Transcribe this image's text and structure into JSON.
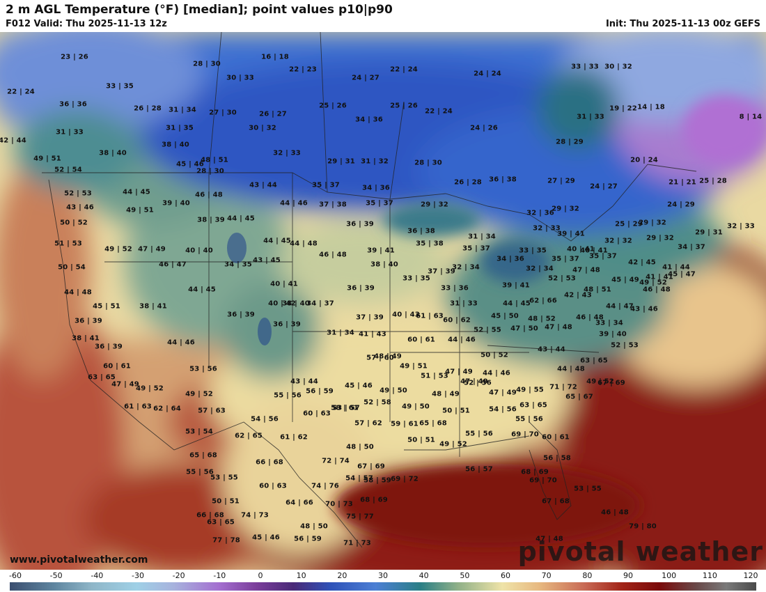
{
  "header": {
    "title": "2 m AGL Temperature (°F) [median]; point values p10|p90",
    "valid": "F012 Valid: Thu 2025-11-13 12z",
    "init": "Init: Thu 2025-11-13 00z GEFS"
  },
  "footer": {
    "website": "www.pivotalweather.com",
    "logo": "pivotal weather"
  },
  "colorbar": {
    "ticks": [
      "-60",
      "-50",
      "-40",
      "-30",
      "-20",
      "-10",
      "0",
      "10",
      "20",
      "30",
      "40",
      "50",
      "60",
      "70",
      "80",
      "90",
      "100",
      "110",
      "120"
    ]
  },
  "point_values": [
    "23|26",
    "16|18",
    "28|30",
    "22|23",
    "22|24",
    "24|27",
    "24|24",
    "33|33",
    "30|32",
    "22|24",
    "33|35",
    "30|33",
    "36|36",
    "26|28",
    "31|34",
    "27|30",
    "26|27",
    "25|26",
    "25|26",
    "22|24",
    "34|36",
    "31|33",
    "19|22",
    "14|18",
    "8|14",
    "31|33",
    "31|35",
    "30|32",
    "24|26",
    "42|44",
    "38|40",
    "38|40",
    "32|33",
    "28|29",
    "20|24",
    "49|51",
    "48|51",
    "29|31",
    "31|32",
    "28|30",
    "26|28",
    "45|46",
    "52|54",
    "43|44",
    "35|37",
    "34|36",
    "36|38",
    "28|30",
    "27|29",
    "24|27",
    "21|21",
    "25|28",
    "52|53",
    "44|45",
    "46|48",
    "44|46",
    "37|38",
    "35|37",
    "29|32",
    "24|29",
    "43|46",
    "49|51",
    "39|40",
    "32|36",
    "29|32",
    "50|52",
    "38|39",
    "44|45",
    "36|39",
    "36|38",
    "31|34",
    "39|41",
    "25|29",
    "29|32",
    "29|31",
    "32|33",
    "51|53",
    "49|52",
    "47|49",
    "40|40",
    "44|45",
    "44|48",
    "35|38",
    "32|33",
    "40|41",
    "32|32",
    "29|32",
    "34|37",
    "50|54",
    "46|47",
    "34|35",
    "43|45",
    "46|48",
    "39|41",
    "35|37",
    "34|36",
    "33|35",
    "35|37",
    "35|37",
    "40|41",
    "42|45",
    "41|44",
    "38|40",
    "33|35",
    "37|39",
    "32|34",
    "32|34",
    "52|53",
    "47|48",
    "45|49",
    "44|48",
    "44|45",
    "40|41",
    "38|40",
    "39|41",
    "41|41",
    "45|47",
    "49|52",
    "45|51",
    "38|41",
    "40|42",
    "34|37",
    "36|39",
    "33|36",
    "31|33",
    "44|45",
    "62|66",
    "42|43",
    "48|51",
    "46|48",
    "36|39",
    "36|39",
    "37|39",
    "40|43",
    "61|63",
    "45|50",
    "48|52",
    "44|47",
    "43|46",
    "38|41",
    "36|39",
    "31|34",
    "41|43",
    "60|62",
    "52|55",
    "47|50",
    "47|48",
    "46|48",
    "33|34",
    "36|39",
    "44|46",
    "57|60",
    "60|61",
    "44|46",
    "50|52",
    "43|44",
    "39|40",
    "52|53",
    "60|61",
    "63|65",
    "44|48",
    "53|56",
    "48|49",
    "49|51",
    "51|53",
    "47|49",
    "47|49",
    "63|65",
    "67|69",
    "47|49",
    "49|52",
    "52|56",
    "43|44",
    "45|46",
    "44|46",
    "49|55",
    "71|72",
    "49|52",
    "49|52",
    "56|59",
    "55|56",
    "49|50",
    "48|49",
    "47|49",
    "63|65",
    "65|67",
    "61|63",
    "62|64",
    "57|63",
    "52|58",
    "49|50",
    "50|51",
    "54|56",
    "55|56",
    "53|57",
    "54|56",
    "60|63",
    "58|61",
    "57|62",
    "59|61",
    "65|68",
    "55|56",
    "53|54",
    "62|65",
    "61|62",
    "50|51",
    "49|52",
    "69|70",
    "60|61",
    "65|68",
    "48|50",
    "55|56",
    "56|58",
    "66|68",
    "72|74",
    "67|69",
    "56|57",
    "68|69",
    "53|55",
    "58|59",
    "60|63",
    "74|76",
    "54|57",
    "69|72",
    "69|70",
    "53|55",
    "50|51",
    "64|66",
    "70|73",
    "68|69",
    "67|68",
    "46|48",
    "63|65",
    "74|73",
    "66|68",
    "48|50",
    "75|77",
    "79|80",
    "77|78",
    "45|46",
    "56|59",
    "71|73",
    "47|48"
  ]
}
